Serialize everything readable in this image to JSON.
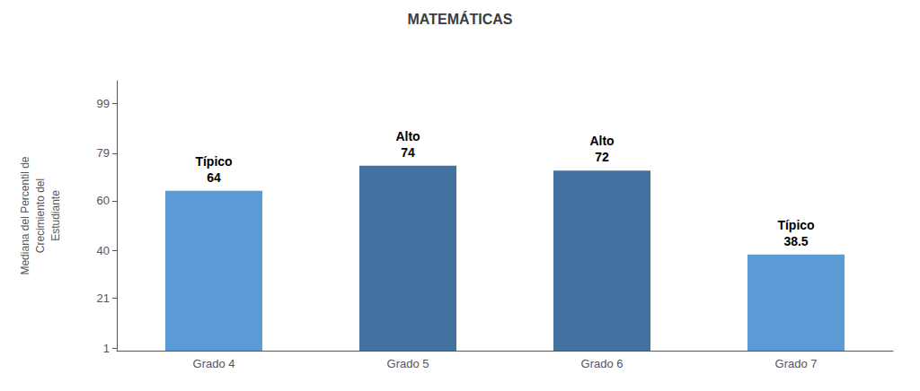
{
  "chart_data": {
    "type": "bar",
    "title": "MATEMÁTICAS",
    "ylabel": "Mediana del Percentil de\nCrecimiento del\nEstudiante",
    "categories": [
      "Grado 4",
      "Grado 5",
      "Grado 6",
      "Grado 7"
    ],
    "values": [
      64,
      74,
      72,
      38.5
    ],
    "colors": [
      "#5B9BD5",
      "#4472A0",
      "#4472A0",
      "#5B9BD5"
    ],
    "data_labels": true,
    "value_labels": [
      "Típico\n64",
      "Alto\n74",
      "Alto\n72",
      "Típico\n38.5"
    ],
    "ylim": [
      0,
      108
    ],
    "yticks": [
      1,
      21,
      40,
      60,
      79,
      99
    ],
    "grid": false
  }
}
